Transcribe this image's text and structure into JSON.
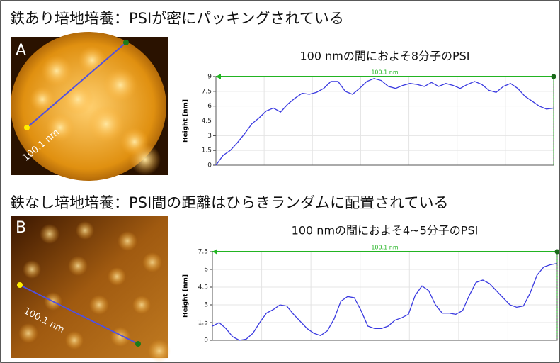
{
  "sections": [
    {
      "heading": "鉄あり培地培養：PSIが密にパッキングされている",
      "panel_label": "A",
      "scale_label": "100.1 nm"
    },
    {
      "heading": "鉄なし培地培養：PSI間の距離はひらきランダムに配置されている",
      "panel_label": "B",
      "scale_label": "100.1 nm"
    }
  ],
  "chart_data": [
    {
      "type": "line",
      "title": "100 nmの間におよそ8分子のPSI",
      "ylabel": "Height [nm]",
      "annotation": "100.1 nm",
      "color": "#3a3ae0",
      "measure_color": "#22b422",
      "values": [
        0,
        1,
        1.5,
        2.3,
        3.2,
        4.2,
        4.8,
        5.5,
        5.8,
        5.4,
        6.2,
        6.8,
        7.3,
        7.2,
        7.4,
        7.8,
        8.5,
        8.5,
        7.5,
        7.2,
        7.8,
        8.5,
        8.8,
        8.6,
        8.0,
        7.8,
        8.1,
        8.3,
        8.2,
        8.0,
        8.4,
        8.0,
        8.3,
        8.1,
        7.8,
        8.2,
        8.5,
        8.2,
        7.6,
        7.4,
        8.0,
        8.3,
        7.8,
        7.0,
        6.5,
        6.0,
        5.7,
        5.8
      ],
      "ylim": [
        0,
        9
      ],
      "yticks": [
        0,
        1.5,
        3,
        4.5,
        6,
        7.5,
        9
      ],
      "grid": true
    },
    {
      "type": "line",
      "title": "100 nmの間におよそ4~5分子のPSI",
      "ylabel": "Height [nm]",
      "annotation": "100.1 nm",
      "color": "#3a3ae0",
      "measure_color": "#22b422",
      "values": [
        1.2,
        1.5,
        1.0,
        0.3,
        0.0,
        0.1,
        0.6,
        1.5,
        2.3,
        2.6,
        3.0,
        2.9,
        2.2,
        1.6,
        1.0,
        0.6,
        0.4,
        0.8,
        1.8,
        3.3,
        3.7,
        3.6,
        2.5,
        1.2,
        1.0,
        1.0,
        1.2,
        1.7,
        1.9,
        2.2,
        3.8,
        4.6,
        4.2,
        3.0,
        2.3,
        2.3,
        2.2,
        2.5,
        3.8,
        4.9,
        5.1,
        4.8,
        4.2,
        3.6,
        3.0,
        2.8,
        2.9,
        4.0,
        5.5,
        6.2,
        6.4,
        6.5
      ],
      "ylim": [
        0,
        7.5
      ],
      "yticks": [
        0,
        1.5,
        3,
        4.5,
        6,
        7.5
      ],
      "grid": true
    }
  ]
}
